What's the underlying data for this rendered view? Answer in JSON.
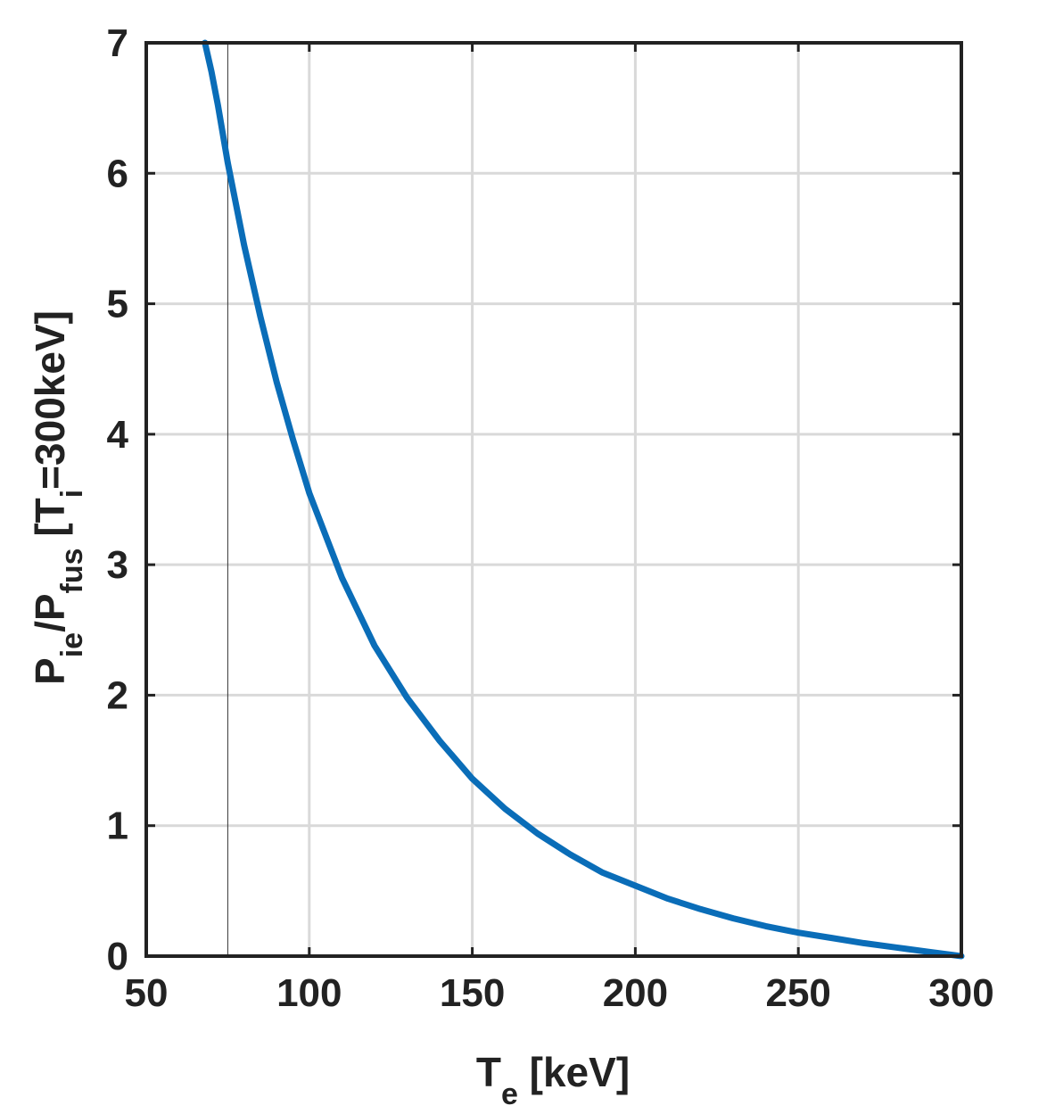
{
  "chart_data": {
    "type": "line",
    "xlabel": {
      "main": "T",
      "sub": "e",
      "rest": " [keV]"
    },
    "ylabel": {
      "parts": [
        {
          "text": "P",
          "sub": false
        },
        {
          "text": "ie",
          "sub": true
        },
        {
          "text": "/P",
          "sub": false
        },
        {
          "text": "fus",
          "sub": true
        },
        {
          "text": " [T",
          "sub": false
        },
        {
          "text": "i",
          "sub": true
        },
        {
          "text": "=300keV]",
          "sub": false
        }
      ]
    },
    "xlim": [
      50,
      300
    ],
    "ylim": [
      0,
      7
    ],
    "xticks": [
      50,
      100,
      150,
      200,
      250,
      300
    ],
    "yticks": [
      0,
      1,
      2,
      3,
      4,
      5,
      6,
      7
    ],
    "grid": true,
    "vline_x": 75,
    "colors": {
      "series": "#0a6db8",
      "axis": "#222222",
      "grid": "#d9d9d9",
      "vline": "#333333"
    },
    "series": [
      {
        "x": [
          68,
          70,
          72,
          75,
          80,
          85,
          90,
          95,
          100,
          110,
          120,
          130,
          140,
          150,
          160,
          170,
          180,
          190,
          200,
          210,
          220,
          230,
          240,
          250,
          260,
          270,
          280,
          290,
          300
        ],
        "y": [
          7.0,
          6.78,
          6.52,
          6.08,
          5.45,
          4.9,
          4.4,
          3.96,
          3.55,
          2.9,
          2.38,
          1.98,
          1.65,
          1.36,
          1.13,
          0.94,
          0.78,
          0.64,
          0.54,
          0.44,
          0.36,
          0.29,
          0.23,
          0.18,
          0.14,
          0.1,
          0.066,
          0.033,
          0.0
        ]
      }
    ]
  }
}
